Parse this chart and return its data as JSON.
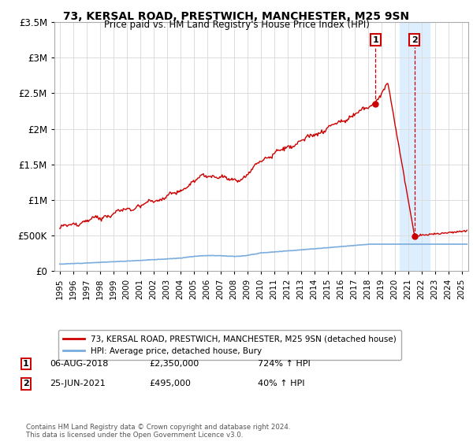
{
  "title": "73, KERSAL ROAD, PRESTWICH, MANCHESTER, M25 9SN",
  "subtitle": "Price paid vs. HM Land Registry's House Price Index (HPI)",
  "ylim": [
    0,
    3500000
  ],
  "yticks": [
    0,
    500000,
    1000000,
    1500000,
    2000000,
    2500000,
    3000000,
    3500000
  ],
  "ytick_labels": [
    "£0",
    "£500K",
    "£1M",
    "£1.5M",
    "£2M",
    "£2.5M",
    "£3M",
    "£3.5M"
  ],
  "xlim_start": 1994.6,
  "xlim_end": 2025.5,
  "shade_start": 2020.4,
  "shade_end": 2022.6,
  "shade_color": "#ddeeff",
  "point1_x": 2018.58,
  "point1_y": 2350000,
  "point2_x": 2021.48,
  "point2_y": 495000,
  "legend_line1": "73, KERSAL ROAD, PRESTWICH, MANCHESTER, M25 9SN (detached house)",
  "legend_line2": "HPI: Average price, detached house, Bury",
  "annotation1_date": "06-AUG-2018",
  "annotation1_price": "£2,350,000",
  "annotation1_hpi": "724% ↑ HPI",
  "annotation2_date": "25-JUN-2021",
  "annotation2_price": "£495,000",
  "annotation2_hpi": "40% ↑ HPI",
  "footer": "Contains HM Land Registry data © Crown copyright and database right 2024.\nThis data is licensed under the Open Government Licence v3.0.",
  "red_line_color": "#cc0000",
  "blue_line_color": "#7aaddd",
  "grid_color": "#dddddd"
}
